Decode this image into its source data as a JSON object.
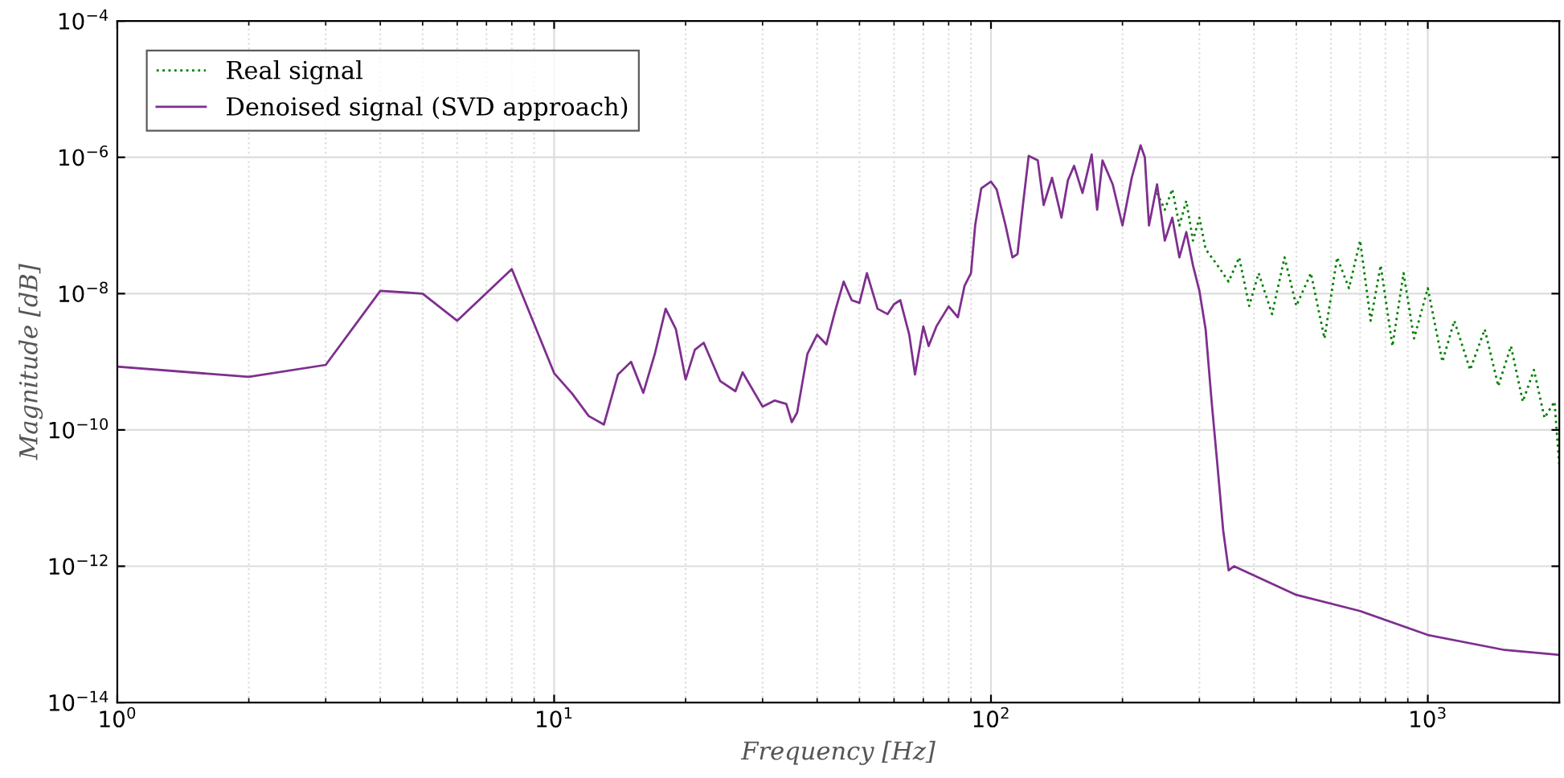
{
  "chart_data": {
    "type": "line",
    "xlabel": "Frequency [Hz]",
    "ylabel": "Magnitude [dB]",
    "log": "xy",
    "grid": true,
    "legend": "top left",
    "xlim": [
      1,
      2000
    ],
    "ylim": [
      1e-14,
      0.0001
    ],
    "xticks": [
      {
        "value": 1,
        "label": "10$^{0}$"
      },
      {
        "value": 10,
        "label": "10$^{1}$"
      },
      {
        "value": 100,
        "label": "10$^{2}$"
      },
      {
        "value": 1000,
        "label": "10$^{3}$"
      }
    ],
    "yticks": [
      {
        "value": 1e-14,
        "label": "10$^{−14}$"
      },
      {
        "value": 1e-12,
        "label": "10$^{−12}$"
      },
      {
        "value": 1e-10,
        "label": "10$^{−10}$"
      },
      {
        "value": 1e-08,
        "label": "10$^{−8}$"
      },
      {
        "value": 1e-06,
        "label": "10$^{−6}$"
      },
      {
        "value": 0.0001,
        "label": "10$^{−4}$"
      }
    ],
    "series": [
      {
        "name": "Real signal",
        "color": "#008000",
        "line_style": "dotted",
        "x": [
          240,
          250,
          260,
          270,
          280,
          290,
          300,
          310,
          330,
          350,
          370,
          390,
          410,
          440,
          470,
          500,
          540,
          580,
          620,
          660,
          700,
          740,
          780,
          830,
          880,
          930,
          1000,
          1080,
          1150,
          1250,
          1350,
          1450,
          1550,
          1650,
          1750,
          1850,
          1950,
          2000
        ],
        "values": [
          3e-07,
          1.7e-07,
          3.4e-07,
          1e-07,
          2.3e-07,
          6e-08,
          1.3e-07,
          4.5e-08,
          2.6e-08,
          1.5e-08,
          3.4e-08,
          6.6e-09,
          2e-08,
          5e-09,
          3.4e-08,
          6.6e-09,
          2e-08,
          2.2e-09,
          3.4e-08,
          1.2e-08,
          6e-08,
          4e-09,
          2.6e-08,
          1.7e-09,
          2e-08,
          2.2e-09,
          1.2e-08,
          1e-09,
          4e-09,
          7.6e-10,
          3e-09,
          4.4e-10,
          1.7e-09,
          2.6e-10,
          7.6e-10,
          1.5e-10,
          2.6e-10,
          3e-11
        ]
      },
      {
        "name": "Denoised signal (SVD approach)",
        "color": "#7e2f8e",
        "line_style": "solid",
        "x": [
          1,
          2,
          3,
          4,
          5,
          6,
          8,
          10,
          11,
          12,
          13,
          14,
          15,
          16,
          17,
          18,
          19,
          20,
          21,
          22,
          24,
          26,
          27,
          30,
          32,
          34,
          35,
          36,
          38,
          40,
          42,
          44,
          46,
          48,
          50,
          52,
          55,
          58,
          60,
          62,
          65,
          67,
          70,
          72,
          75,
          78,
          80,
          84,
          87,
          90,
          92,
          95,
          100,
          103,
          108,
          112,
          115,
          118,
          122,
          128,
          132,
          138,
          145,
          150,
          155,
          162,
          170,
          175,
          180,
          190,
          200,
          210,
          220,
          225,
          230,
          240,
          250,
          260,
          270,
          280,
          290,
          300,
          310,
          320,
          330,
          340,
          350,
          360,
          500,
          700,
          1000,
          1500,
          2000
        ],
        "values": [
          8.5e-10,
          6e-10,
          9e-10,
          1.1e-08,
          1e-08,
          4e-09,
          2.3e-08,
          6.8e-10,
          3.4e-10,
          1.6e-10,
          1.2e-10,
          6.5e-10,
          1e-09,
          3.5e-10,
          1.3e-09,
          6e-09,
          3e-09,
          5.5e-10,
          1.5e-09,
          1.9e-09,
          5.2e-10,
          3.7e-10,
          7e-10,
          2.2e-10,
          2.7e-10,
          2.4e-10,
          1.3e-10,
          1.8e-10,
          1.3e-09,
          2.5e-09,
          1.8e-09,
          5.6e-09,
          1.5e-08,
          8e-09,
          7.3e-09,
          2e-08,
          6e-09,
          5e-09,
          7e-09,
          8e-09,
          2.5e-09,
          6.5e-10,
          3.3e-09,
          1.7e-09,
          3.3e-09,
          5e-09,
          6.5e-09,
          4.5e-09,
          1.3e-08,
          2e-08,
          1e-07,
          3.5e-07,
          4.4e-07,
          3.4e-07,
          1e-07,
          3.4e-08,
          3.8e-08,
          1.7e-07,
          1.05e-06,
          9e-07,
          2e-07,
          5e-07,
          1.3e-07,
          4.6e-07,
          7.5e-07,
          3e-07,
          1.1e-06,
          1.7e-07,
          9e-07,
          4e-07,
          1e-07,
          5e-07,
          1.5e-06,
          1e-06,
          1e-07,
          4e-07,
          6e-08,
          1.3e-07,
          3.4e-08,
          8e-08,
          2.6e-08,
          1.1e-08,
          3e-09,
          2.6e-10,
          3e-11,
          3.4e-12,
          8.7e-13,
          1e-12,
          3.8e-13,
          2.2e-13,
          9.8e-14,
          5.9e-14,
          5e-14
        ]
      }
    ]
  }
}
